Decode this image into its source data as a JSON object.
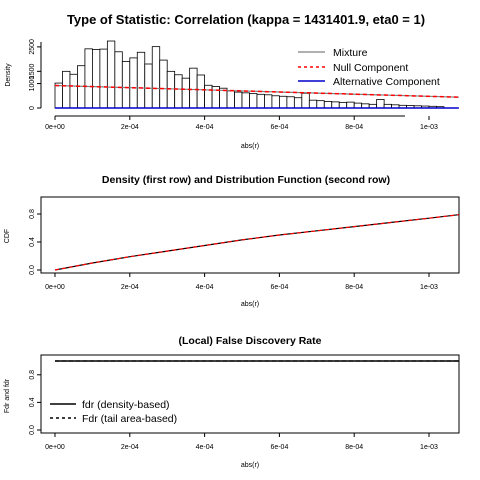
{
  "chart_data": [
    {
      "type": "bar",
      "title": "Type of Statistic: Correlation (kappa = 1431401.9, eta0 = 1)",
      "xlabel": "abs(r)",
      "ylabel": "Density",
      "xlim": [
        0,
        0.00109
      ],
      "ylim": [
        0,
        2700
      ],
      "x_ticks": [
        "0e+00",
        "2e-04",
        "4e-04",
        "6e-04",
        "8e-04",
        "1e-03"
      ],
      "y_ticks": [
        "0",
        "1000",
        "1500",
        "2500"
      ],
      "bin_width": 2e-05,
      "bins_start": 0,
      "values": [
        1020,
        1500,
        1380,
        1730,
        2420,
        2390,
        2410,
        2740,
        2300,
        1900,
        2050,
        2280,
        1800,
        2510,
        1960,
        1500,
        1360,
        1220,
        1630,
        1350,
        930,
        880,
        810,
        700,
        650,
        620,
        590,
        560,
        540,
        500,
        480,
        460,
        420,
        600,
        320,
        300,
        270,
        250,
        230,
        240,
        200,
        170,
        150,
        350,
        150,
        130,
        110,
        100,
        90,
        80,
        70,
        55,
        45,
        40,
        35,
        25,
        20,
        15,
        10,
        5,
        5,
        5,
        5,
        5,
        5,
        5,
        5,
        5,
        5,
        5,
        5,
        5,
        5,
        5,
        5,
        5,
        5,
        5,
        5,
        5,
        5,
        5,
        5,
        5,
        5,
        5,
        5,
        5,
        5,
        5,
        5,
        5,
        5,
        5,
        5,
        5,
        5,
        5,
        5,
        5,
        5,
        5,
        5,
        5,
        5,
        5,
        5,
        5,
        5,
        5,
        5,
        5,
        5,
        5,
        5,
        5,
        5,
        5,
        5,
        5,
        5,
        5,
        5,
        5,
        5,
        5,
        5,
        5,
        5,
        5,
        5,
        5,
        5,
        5,
        5,
        5,
        5,
        5,
        5,
        5,
        5,
        5,
        5,
        5,
        5,
        5,
        5,
        5,
        5,
        5,
        5,
        5,
        5,
        5,
        5,
        5,
        5,
        5,
        5,
        5,
        5,
        5,
        5,
        5,
        5,
        5,
        5,
        5,
        5,
        5,
        5,
        5,
        5,
        5,
        5,
        5,
        5,
        5,
        5,
        5,
        5,
        5,
        5,
        5,
        5,
        5,
        5,
        5,
        5,
        5,
        5,
        5,
        5,
        5,
        5,
        5,
        5,
        5,
        5,
        5,
        5
      ],
      "series": [
        {
          "name": "Mixture",
          "color": "#808080",
          "x": [
            0,
            0.00108
          ],
          "y": [
            920,
            440
          ]
        },
        {
          "name": "Null Component",
          "color": "#ff0000",
          "dash": true,
          "x": [
            0,
            0.00108
          ],
          "y": [
            920,
            440
          ]
        },
        {
          "name": "Alternative Component",
          "color": "#0000cc",
          "x": [
            0,
            0.00108
          ],
          "y": [
            0,
            0
          ]
        }
      ],
      "legend": "top-right"
    },
    {
      "type": "line",
      "title": "Density (first row) and Distribution Function (second row)",
      "xlabel": "abs(r)",
      "ylabel": "CDF",
      "xlim": [
        0,
        0.00109
      ],
      "ylim": [
        0,
        1
      ],
      "x_ticks": [
        "0e+00",
        "2e-04",
        "4e-04",
        "6e-04",
        "8e-04",
        "1e-03"
      ],
      "y_ticks": [
        "0.0",
        "0.4",
        "0.8"
      ],
      "series": [
        {
          "color": "#000000",
          "x": [
            0,
            0.0001,
            0.0002,
            0.0003,
            0.0004,
            0.0005,
            0.0006,
            0.0007,
            0.0008,
            0.0009,
            0.001,
            0.00108
          ],
          "y": [
            0,
            0.1,
            0.19,
            0.27,
            0.35,
            0.43,
            0.5,
            0.56,
            0.62,
            0.68,
            0.74,
            0.79
          ]
        },
        {
          "color": "#ff0000",
          "dash": true,
          "x": [
            0,
            0.0001,
            0.0002,
            0.0003,
            0.0004,
            0.0005,
            0.0006,
            0.0007,
            0.0008,
            0.0009,
            0.001,
            0.00108
          ],
          "y": [
            0,
            0.1,
            0.19,
            0.27,
            0.35,
            0.43,
            0.5,
            0.56,
            0.62,
            0.68,
            0.74,
            0.79
          ]
        }
      ]
    },
    {
      "type": "line",
      "title": "(Local) False Discovery Rate",
      "xlabel": "abs(r)",
      "ylabel": "Fdr and fdr",
      "xlim": [
        0,
        0.00109
      ],
      "ylim": [
        0,
        1
      ],
      "x_ticks": [
        "0e+00",
        "2e-04",
        "4e-04",
        "6e-04",
        "8e-04",
        "1e-03"
      ],
      "y_ticks": [
        "0.0",
        "0.4",
        "0.8"
      ],
      "series": [
        {
          "name": "fdr (density-based)",
          "color": "#000000",
          "x": [
            0,
            0.00108
          ],
          "y": [
            1,
            1
          ]
        },
        {
          "name": "Fdr (tail area-based)",
          "color": "#000000",
          "dash": true,
          "x": [
            0,
            0.00108
          ],
          "y": [
            1,
            1
          ]
        }
      ],
      "legend": "bottom-left"
    }
  ]
}
